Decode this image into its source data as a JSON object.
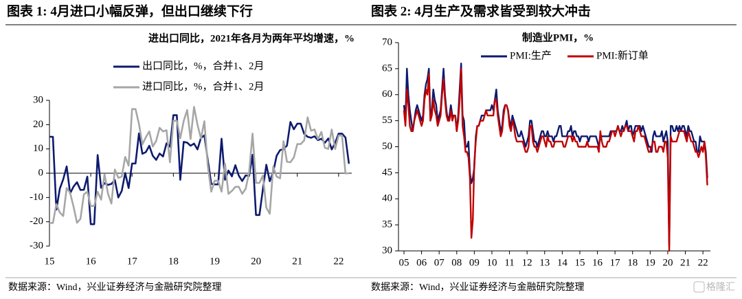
{
  "chart_data": [
    {
      "type": "line",
      "figure_label": "图表 1: 4月进口小幅反弹，但出口继续下行",
      "title": "进出口同比，2021年各月为两年平均增速，%",
      "source": "数据来源：Wind，兴业证券经济与金融研究院整理",
      "categories": [
        "15",
        null,
        null,
        null,
        null,
        null,
        null,
        null,
        null,
        null,
        null,
        null,
        "16",
        null,
        null,
        null,
        null,
        null,
        null,
        null,
        null,
        null,
        null,
        null,
        "17",
        null,
        null,
        null,
        null,
        null,
        null,
        null,
        null,
        null,
        null,
        null,
        "18",
        null,
        null,
        null,
        null,
        null,
        null,
        null,
        null,
        null,
        null,
        null,
        "19",
        null,
        null,
        null,
        null,
        null,
        null,
        null,
        null,
        null,
        null,
        null,
        "20",
        null,
        null,
        null,
        null,
        null,
        null,
        null,
        null,
        null,
        null,
        null,
        "21",
        null,
        null,
        null,
        null,
        null,
        null,
        null,
        null,
        null,
        null,
        null,
        "22",
        null,
        null,
        null
      ],
      "ylim": [
        -30,
        30
      ],
      "yticks": [
        -30,
        -20,
        -10,
        0,
        10,
        20,
        30
      ],
      "series": [
        {
          "name": "出口同比，%，合并1、2月",
          "color": "#0d1a6e",
          "values": [
            15,
            15,
            -15,
            -6.4,
            -2.5,
            2.8,
            -8.3,
            -5.5,
            -3.7,
            -6.9,
            -6.8,
            -1.4,
            -21,
            -21,
            7.5,
            -6,
            -4.1,
            -4.8,
            -4.4,
            -2.8,
            -10,
            -7.3,
            0.1,
            -6.1,
            4,
            4,
            16.4,
            8,
            8.7,
            11.3,
            7.2,
            5.5,
            8.1,
            6.9,
            12.3,
            10.9,
            23.9,
            23.9,
            -2.7,
            12.9,
            12.6,
            11.3,
            12.2,
            9.8,
            14.5,
            15.6,
            5.4,
            -4.4,
            -4.6,
            -4.6,
            14.2,
            -2.7,
            1.1,
            -1.3,
            3.3,
            -1,
            -3.2,
            -0.9,
            -1.1,
            7.6,
            -17.2,
            -17.2,
            -6.6,
            3.5,
            -3.3,
            0.5,
            7.2,
            9.5,
            9.9,
            11.4,
            21.1,
            18.1,
            20.4,
            20.4,
            16.2,
            15,
            14.6,
            15.2,
            13.6,
            14.2,
            12.5,
            14.3,
            9.8,
            12.5,
            16.3,
            16.3,
            14.7,
            3.9
          ]
        },
        {
          "name": "进口同比，%，合并1、2月",
          "color": "#a6a6a6",
          "values": [
            -20.5,
            -20.5,
            -12.7,
            -16.2,
            -17.6,
            -6.1,
            -8.1,
            -13.8,
            -20.4,
            -18.8,
            -8.7,
            -7.6,
            -13.5,
            -13.5,
            -7.6,
            -10.9,
            -0.4,
            -8.4,
            -12.5,
            1.5,
            -1.9,
            -1.4,
            6.7,
            3.1,
            26.4,
            26.4,
            20.3,
            11.9,
            14.8,
            17.2,
            11,
            13.3,
            18.7,
            17.2,
            17.7,
            4.5,
            21.6,
            21.6,
            14.4,
            21.5,
            26,
            14.1,
            27.3,
            20,
            14.3,
            21.4,
            3,
            -7.6,
            -3.1,
            -3.1,
            -7.6,
            4,
            -8.5,
            -7.3,
            -5.6,
            -5.6,
            -8.5,
            -6.4,
            0.3,
            16.3,
            -4,
            -4,
            -1,
            -14.2,
            -16.7,
            2.7,
            -1.4,
            -2.1,
            13.2,
            4.7,
            4.5,
            6.5,
            12,
            12,
            13.5,
            23,
            17.5,
            18,
            14,
            17,
            10.5,
            10,
            18,
            10,
            15.5,
            15.5,
            -0.1,
            0
          ]
        }
      ]
    },
    {
      "type": "line",
      "figure_label": "图表 2: 4月生产及需求皆受到较大冲击",
      "title": "制造业PMI，%",
      "source": "数据来源：Wind，兴业证券经济与金融研究院整理",
      "categories": [
        "05",
        null,
        null,
        null,
        null,
        null,
        null,
        null,
        null,
        null,
        null,
        null,
        "06",
        null,
        null,
        null,
        null,
        null,
        null,
        null,
        null,
        null,
        null,
        null,
        "07",
        null,
        null,
        null,
        null,
        null,
        null,
        null,
        null,
        null,
        null,
        null,
        "08",
        null,
        null,
        null,
        null,
        null,
        null,
        null,
        null,
        null,
        null,
        null,
        "09",
        null,
        null,
        null,
        null,
        null,
        null,
        null,
        null,
        null,
        null,
        null,
        "10",
        null,
        null,
        null,
        null,
        null,
        null,
        null,
        null,
        null,
        null,
        null,
        "11",
        null,
        null,
        null,
        null,
        null,
        null,
        null,
        null,
        null,
        null,
        null,
        "12",
        null,
        null,
        null,
        null,
        null,
        null,
        null,
        null,
        null,
        null,
        null,
        "13",
        null,
        null,
        null,
        null,
        null,
        null,
        null,
        null,
        null,
        null,
        null,
        "14",
        null,
        null,
        null,
        null,
        null,
        null,
        null,
        null,
        null,
        null,
        null,
        "15",
        null,
        null,
        null,
        null,
        null,
        null,
        null,
        null,
        null,
        null,
        null,
        "16",
        null,
        null,
        null,
        null,
        null,
        null,
        null,
        null,
        null,
        null,
        null,
        "17",
        null,
        null,
        null,
        null,
        null,
        null,
        null,
        null,
        null,
        null,
        null,
        "18",
        null,
        null,
        null,
        null,
        null,
        null,
        null,
        null,
        null,
        null,
        null,
        "19",
        null,
        null,
        null,
        null,
        null,
        null,
        null,
        null,
        null,
        null,
        null,
        "20",
        null,
        null,
        null,
        null,
        null,
        null,
        null,
        null,
        null,
        null,
        null,
        "21",
        null,
        null,
        null,
        null,
        null,
        null,
        null,
        null,
        null,
        null,
        null,
        "22",
        null,
        null,
        null
      ],
      "ylim": [
        30,
        70
      ],
      "yticks": [
        30,
        35,
        40,
        45,
        50,
        55,
        60,
        65,
        70
      ],
      "series": [
        {
          "name": "PMI:生产",
          "color": "#0d1a6e",
          "values": [
            58,
            55,
            65,
            60,
            57,
            55,
            53,
            55,
            57,
            58,
            57,
            56,
            55,
            56,
            60,
            62,
            63,
            65,
            56,
            57,
            61,
            59,
            58,
            55,
            56,
            57,
            61,
            65,
            60,
            57,
            55,
            56,
            58,
            56,
            56,
            56,
            53,
            56,
            61,
            66,
            56,
            55,
            50,
            50,
            51,
            45,
            43,
            44,
            46,
            52,
            54,
            54,
            55,
            56,
            56,
            56,
            57,
            57,
            57,
            57,
            58,
            57,
            59,
            61,
            57,
            55,
            53,
            54,
            57,
            58,
            58,
            57,
            55,
            54,
            56,
            55,
            54,
            53,
            52,
            52,
            53,
            52,
            51,
            50,
            51,
            52,
            55,
            55,
            53,
            51,
            51,
            50,
            51,
            52,
            53,
            53,
            52,
            52,
            53,
            52,
            52,
            52,
            51,
            52,
            52,
            53,
            54,
            54,
            52,
            52,
            52,
            52,
            53,
            53,
            54,
            52,
            53,
            53,
            52,
            52,
            51,
            52,
            52,
            52,
            52,
            52,
            51,
            52,
            52,
            52,
            52,
            52,
            51,
            50,
            52,
            52,
            52,
            52,
            52,
            52,
            52,
            53,
            53,
            53,
            53,
            53,
            54,
            53,
            53,
            54,
            53,
            54,
            55,
            53,
            54,
            54,
            52,
            53,
            54,
            54,
            54,
            54,
            53,
            54,
            53,
            52,
            51,
            50,
            50,
            49,
            52,
            53,
            52,
            52,
            52,
            52,
            53,
            51,
            52,
            53,
            51,
            31,
            54,
            54,
            53,
            53,
            54,
            53,
            54,
            53,
            54,
            54,
            53,
            52,
            54,
            53,
            53,
            52,
            51,
            51,
            49,
            49,
            52,
            51,
            51,
            51,
            49,
            44
          ]
        },
        {
          "name": "PMI:新订单",
          "color": "#c00000",
          "values": [
            57,
            54,
            61,
            58,
            54,
            53,
            53,
            55,
            56,
            57,
            56,
            55,
            54,
            55,
            59,
            61,
            60,
            64,
            55,
            56,
            59,
            57,
            56,
            54,
            55,
            56,
            60,
            63,
            59,
            56,
            55,
            55,
            57,
            55,
            56,
            56,
            53,
            55,
            59,
            65,
            54,
            52,
            49,
            49,
            48,
            44,
            32.5,
            36,
            47,
            51,
            54,
            54,
            55,
            55,
            55,
            56,
            57,
            56,
            56,
            56,
            56,
            56,
            59,
            59,
            56,
            54,
            52,
            53,
            56,
            58,
            58,
            57,
            54,
            53,
            55,
            54,
            52,
            51,
            51,
            51,
            51,
            51,
            50,
            49,
            49,
            50,
            54,
            54,
            51,
            50,
            50,
            49,
            50,
            51,
            52,
            52,
            51,
            50,
            52,
            51,
            51,
            50,
            50,
            51,
            51,
            51,
            51,
            51,
            51,
            50,
            50,
            51,
            52,
            52,
            52,
            51,
            52,
            51,
            51,
            50,
            50,
            50,
            50,
            50,
            50,
            51,
            50,
            50,
            50,
            50,
            50,
            50,
            50,
            49,
            53,
            51,
            50,
            50,
            50,
            51,
            51,
            52,
            53,
            53,
            52,
            53,
            54,
            53,
            52,
            53,
            53,
            54,
            54,
            53,
            53,
            53,
            52,
            51,
            53,
            53,
            54,
            53,
            52,
            52,
            52,
            51,
            50,
            49,
            49,
            50,
            51,
            51,
            49,
            49,
            50,
            50,
            50,
            49,
            51,
            51,
            48,
            30,
            52,
            51,
            51,
            51,
            51,
            52,
            53,
            53,
            53,
            53,
            52,
            51,
            53,
            52,
            51,
            51,
            50,
            49,
            49,
            48,
            49,
            50,
            49,
            51,
            48,
            42.6
          ]
        }
      ]
    }
  ],
  "watermark": "格隆汇"
}
